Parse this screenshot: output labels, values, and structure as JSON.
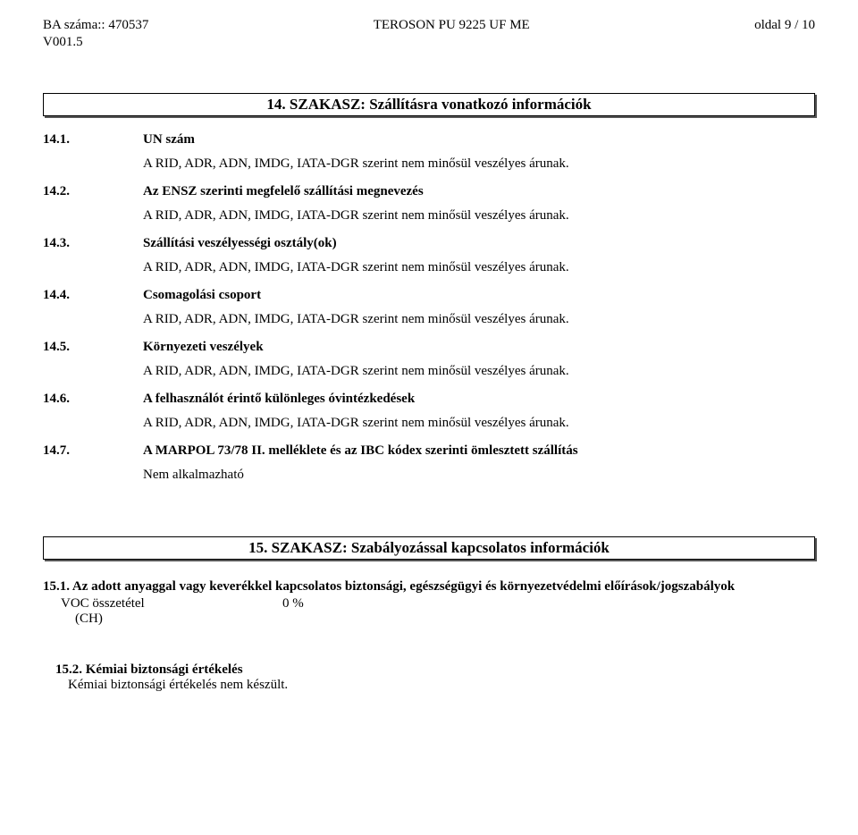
{
  "header": {
    "left": "BA száma:: 470537",
    "center": "TEROSON PU 9225 UF ME",
    "right": "oldal 9 / 10",
    "sub": "V001.5"
  },
  "section14": {
    "title": "14. SZAKASZ: Szállításra vonatkozó információk",
    "common_text": "A RID, ADR,  ADN, IMDG, IATA-DGR szerint nem minősül veszélyes árunak.",
    "items": {
      "i1": {
        "num": "14.1.",
        "label": "UN szám"
      },
      "i2": {
        "num": "14.2.",
        "label": "Az ENSZ szerinti megfelelő szállítási megnevezés"
      },
      "i3": {
        "num": "14.3.",
        "label": "Szállítási veszélyességi osztály(ok)"
      },
      "i4": {
        "num": "14.4.",
        "label": "Csomagolási csoport"
      },
      "i5": {
        "num": "14.5.",
        "label": "Környezeti veszélyek"
      },
      "i6": {
        "num": "14.6.",
        "label": "A felhasználót érintő különleges óvintézkedések"
      },
      "i7": {
        "num": "14.7.",
        "label": "A MARPOL 73/78 II. melléklete és az IBC kódex szerinti ömlesztett szállítás"
      }
    },
    "i7_body": "Nem alkalmazható"
  },
  "section15": {
    "title": "15. SZAKASZ: Szabályozással kapcsolatos információk",
    "s1_heading": "15.1. Az adott anyaggal vagy keverékkel kapcsolatos biztonsági, egészségügyi és környezetvédelmi előírások/jogszabályok",
    "voc_label": "VOC összetétel",
    "voc_value": "0 %",
    "voc_ch": "(CH)",
    "s2_heading": "15.2. Kémiai biztonsági értékelés",
    "s2_body": "Kémiai biztonsági értékelés nem készült."
  }
}
